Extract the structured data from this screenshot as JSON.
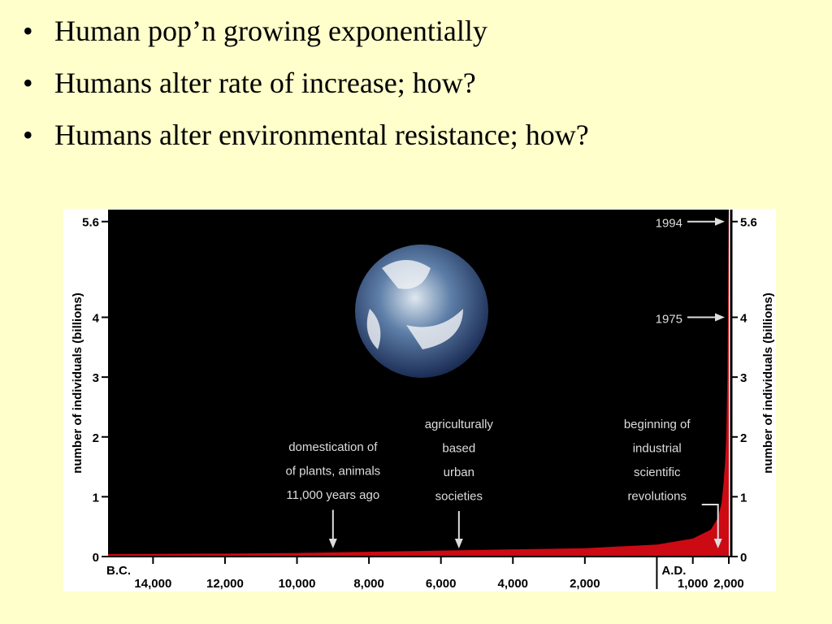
{
  "bullets": [
    "Human pop’n growing exponentially",
    "Humans alter rate of increase; how?",
    "Humans alter environmental resistance; how?"
  ],
  "chart_data": {
    "type": "area",
    "ylabel": "number of individuals (billions)",
    "x": [
      -15250,
      -12000,
      -10000,
      -8000,
      -6000,
      -4000,
      -2000,
      0,
      1000,
      1500,
      1700,
      1800,
      1850,
      1900,
      1930,
      1960,
      1975,
      1994,
      2000
    ],
    "series": [
      {
        "name": "population",
        "color": "#cc0a14",
        "values": [
          0.04,
          0.05,
          0.06,
          0.08,
          0.1,
          0.12,
          0.14,
          0.2,
          0.3,
          0.45,
          0.65,
          0.9,
          1.2,
          1.6,
          2,
          3,
          4,
          5.6,
          5.8
        ]
      }
    ],
    "xlim": [
      -15250,
      2000
    ],
    "ylim": [
      0,
      5.8
    ],
    "yticks": [
      0,
      1,
      2,
      3,
      4,
      5.6
    ],
    "xticks": [
      {
        "value": -14000,
        "label": "14,000"
      },
      {
        "value": -12000,
        "label": "12,000"
      },
      {
        "value": -10000,
        "label": "10,000"
      },
      {
        "value": -8000,
        "label": "8,000"
      },
      {
        "value": -6000,
        "label": "6,000"
      },
      {
        "value": -4000,
        "label": "4,000"
      },
      {
        "value": -2000,
        "label": "2,000"
      },
      {
        "value": 1000,
        "label": "1,000"
      },
      {
        "value": 2000,
        "label": "2,000"
      }
    ],
    "era_labels": [
      "B.C.",
      "A.D."
    ],
    "annotations": [
      {
        "lines": [
          "domestication of",
          "of plants, animals",
          "11,000 years ago"
        ],
        "x": -9000
      },
      {
        "lines": [
          "agriculturally",
          "based",
          "urban",
          "societies"
        ],
        "x": -5500
      },
      {
        "lines": [
          "beginning of",
          "industrial",
          "scientific",
          "revolutions"
        ],
        "x": 1700
      }
    ],
    "year_marks": [
      {
        "label": "1994",
        "y": 5.6
      },
      {
        "label": "1975",
        "y": 4
      }
    ]
  }
}
